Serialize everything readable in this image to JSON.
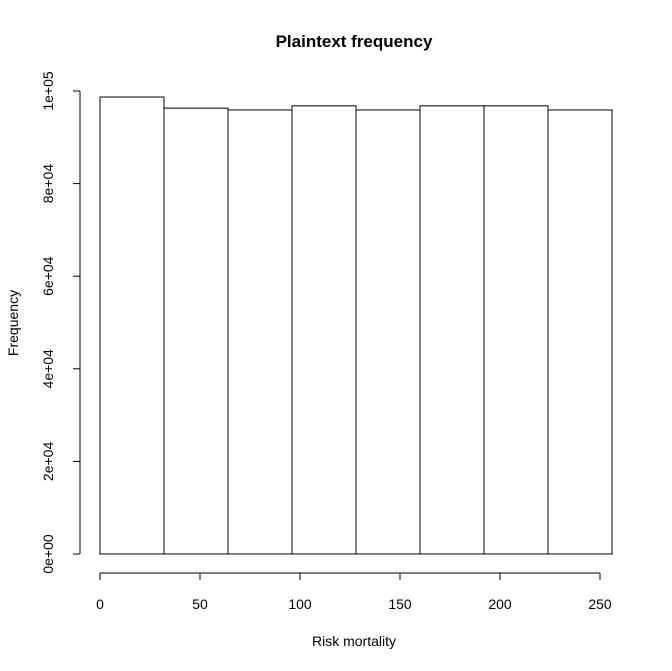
{
  "chart_data": {
    "type": "bar",
    "title": "Plaintext frequency",
    "xlabel": "Risk mortality",
    "ylabel": "Frequency",
    "bin_edges": [
      0,
      32,
      64,
      96,
      128,
      160,
      192,
      224,
      256
    ],
    "values": [
      98700,
      96300,
      95900,
      96800,
      95900,
      96800,
      96800,
      95900
    ],
    "xlim": [
      0,
      256
    ],
    "ylim": [
      0,
      100000
    ],
    "x_ticks": [
      0,
      50,
      100,
      150,
      200,
      250
    ],
    "x_tick_labels": [
      "0",
      "50",
      "100",
      "150",
      "200",
      "250"
    ],
    "y_ticks": [
      0,
      20000,
      40000,
      60000,
      80000,
      100000
    ],
    "y_tick_labels": [
      "0e+00",
      "2e+04",
      "4e+04",
      "6e+04",
      "8e+04",
      "1e+05"
    ],
    "colors": {
      "bar_fill": "#ffffff",
      "bar_stroke": "#000000"
    },
    "grid": false,
    "legend": "none"
  }
}
